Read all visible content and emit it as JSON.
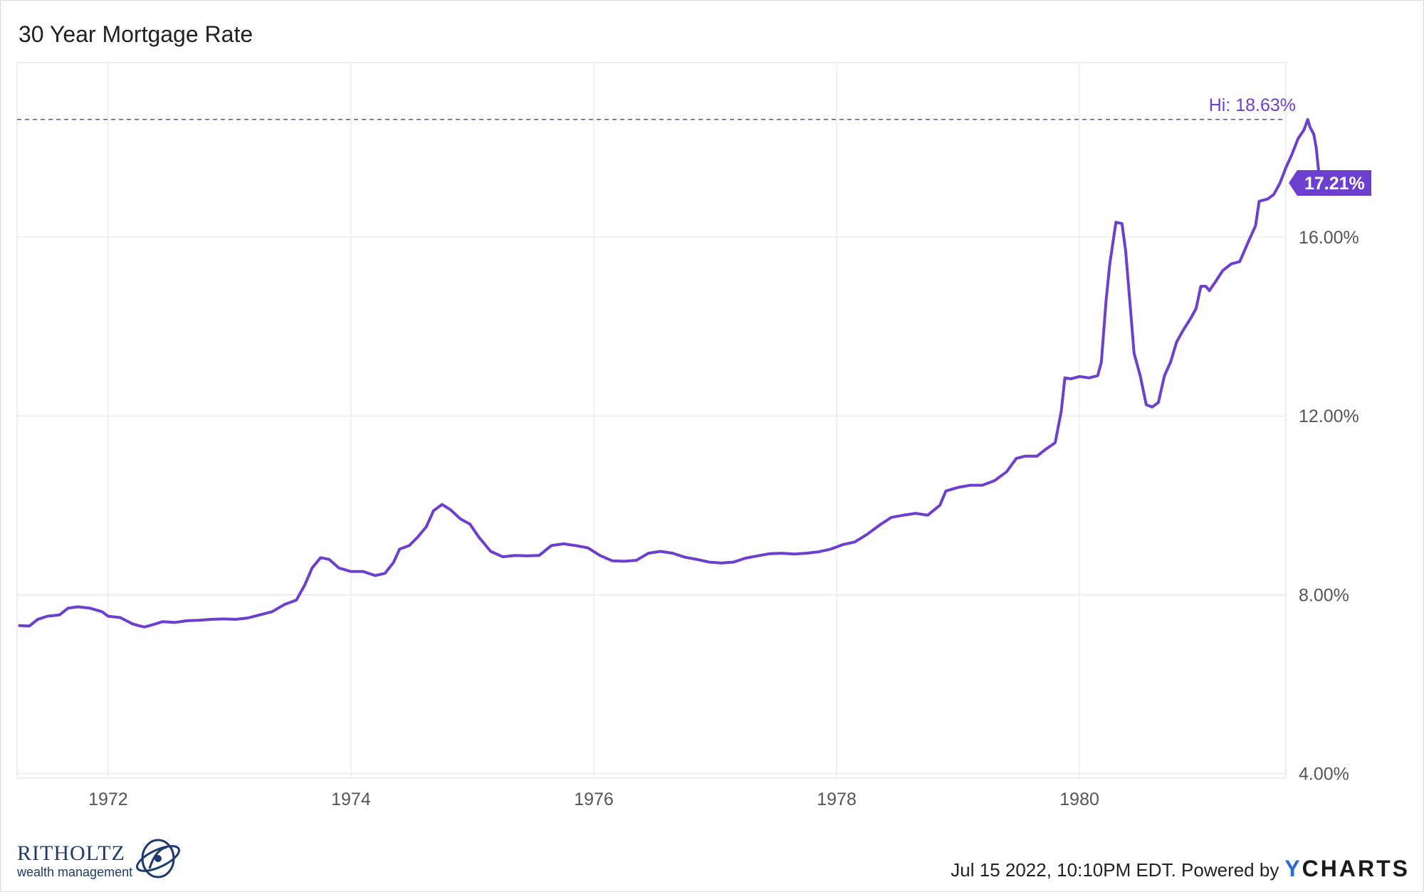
{
  "title": "30 Year Mortgage Rate",
  "footer": {
    "timestamp": "Jul 15 2022, 10:10PM EDT. Powered by",
    "logo": "YCHARTS"
  },
  "brand": {
    "name": "RITHOLTZ",
    "sub": "wealth management"
  },
  "colors": {
    "line": "#6c3fcf",
    "grid": "#e4e4e4",
    "axis_text": "#555555",
    "badge": "#6c3fcf"
  },
  "chart_data": {
    "type": "line",
    "title": "30 Year Mortgage Rate",
    "xlabel": "",
    "ylabel": "",
    "xlim": [
      1971.25,
      1981.7
    ],
    "ylim": [
      3.9,
      19.9
    ],
    "y_ticks": [
      4,
      8,
      12,
      16
    ],
    "y_tick_labels": [
      "4.00%",
      "8.00%",
      "12.00%",
      "16.00%"
    ],
    "x_ticks": [
      1972,
      1974,
      1976,
      1978,
      1980
    ],
    "x_tick_labels": [
      "1972",
      "1974",
      "1976",
      "1978",
      "1980"
    ],
    "grid": true,
    "hi_value": 18.63,
    "hi_label": "Hi: 18.63%",
    "last_value": 17.21,
    "last_label": "17.21%",
    "series": [
      {
        "name": "30 Year Mortgage Rate",
        "points": [
          [
            1971.27,
            7.31
          ],
          [
            1971.35,
            7.3
          ],
          [
            1971.42,
            7.45
          ],
          [
            1971.5,
            7.52
          ],
          [
            1971.6,
            7.55
          ],
          [
            1971.67,
            7.7
          ],
          [
            1971.75,
            7.73
          ],
          [
            1971.85,
            7.7
          ],
          [
            1971.95,
            7.62
          ],
          [
            1972.0,
            7.52
          ],
          [
            1972.1,
            7.49
          ],
          [
            1972.2,
            7.35
          ],
          [
            1972.25,
            7.31
          ],
          [
            1972.3,
            7.28
          ],
          [
            1972.38,
            7.34
          ],
          [
            1972.45,
            7.4
          ],
          [
            1972.55,
            7.38
          ],
          [
            1972.65,
            7.42
          ],
          [
            1972.75,
            7.43
          ],
          [
            1972.85,
            7.45
          ],
          [
            1972.95,
            7.46
          ],
          [
            1973.05,
            7.45
          ],
          [
            1973.15,
            7.48
          ],
          [
            1973.25,
            7.55
          ],
          [
            1973.35,
            7.62
          ],
          [
            1973.45,
            7.78
          ],
          [
            1973.55,
            7.88
          ],
          [
            1973.62,
            8.22
          ],
          [
            1973.68,
            8.6
          ],
          [
            1973.75,
            8.83
          ],
          [
            1973.82,
            8.79
          ],
          [
            1973.9,
            8.6
          ],
          [
            1974.0,
            8.52
          ],
          [
            1974.1,
            8.52
          ],
          [
            1974.2,
            8.43
          ],
          [
            1974.28,
            8.48
          ],
          [
            1974.35,
            8.72
          ],
          [
            1974.4,
            9.02
          ],
          [
            1974.48,
            9.1
          ],
          [
            1974.55,
            9.29
          ],
          [
            1974.62,
            9.52
          ],
          [
            1974.68,
            9.88
          ],
          [
            1974.75,
            10.02
          ],
          [
            1974.82,
            9.9
          ],
          [
            1974.9,
            9.7
          ],
          [
            1974.98,
            9.58
          ],
          [
            1975.05,
            9.3
          ],
          [
            1975.15,
            8.97
          ],
          [
            1975.25,
            8.85
          ],
          [
            1975.35,
            8.88
          ],
          [
            1975.45,
            8.87
          ],
          [
            1975.55,
            8.88
          ],
          [
            1975.65,
            9.1
          ],
          [
            1975.75,
            9.14
          ],
          [
            1975.85,
            9.1
          ],
          [
            1975.95,
            9.05
          ],
          [
            1976.05,
            8.88
          ],
          [
            1976.15,
            8.76
          ],
          [
            1976.25,
            8.75
          ],
          [
            1976.35,
            8.77
          ],
          [
            1976.45,
            8.93
          ],
          [
            1976.55,
            8.97
          ],
          [
            1976.65,
            8.93
          ],
          [
            1976.75,
            8.84
          ],
          [
            1976.85,
            8.79
          ],
          [
            1976.95,
            8.73
          ],
          [
            1977.05,
            8.71
          ],
          [
            1977.15,
            8.73
          ],
          [
            1977.25,
            8.82
          ],
          [
            1977.35,
            8.87
          ],
          [
            1977.45,
            8.92
          ],
          [
            1977.55,
            8.93
          ],
          [
            1977.65,
            8.91
          ],
          [
            1977.75,
            8.93
          ],
          [
            1977.85,
            8.96
          ],
          [
            1977.95,
            9.02
          ],
          [
            1978.05,
            9.12
          ],
          [
            1978.15,
            9.18
          ],
          [
            1978.25,
            9.35
          ],
          [
            1978.35,
            9.55
          ],
          [
            1978.45,
            9.73
          ],
          [
            1978.55,
            9.78
          ],
          [
            1978.65,
            9.82
          ],
          [
            1978.75,
            9.78
          ],
          [
            1978.85,
            10.0
          ],
          [
            1978.9,
            10.32
          ],
          [
            1979.0,
            10.4
          ],
          [
            1979.1,
            10.45
          ],
          [
            1979.2,
            10.45
          ],
          [
            1979.3,
            10.55
          ],
          [
            1979.4,
            10.75
          ],
          [
            1979.48,
            11.05
          ],
          [
            1979.55,
            11.1
          ],
          [
            1979.65,
            11.1
          ],
          [
            1979.72,
            11.25
          ],
          [
            1979.8,
            11.4
          ],
          [
            1979.85,
            12.1
          ],
          [
            1979.88,
            12.85
          ],
          [
            1979.93,
            12.83
          ],
          [
            1980.0,
            12.88
          ],
          [
            1980.08,
            12.85
          ],
          [
            1980.15,
            12.9
          ],
          [
            1980.18,
            13.2
          ],
          [
            1980.22,
            14.6
          ],
          [
            1980.25,
            15.4
          ],
          [
            1980.3,
            16.33
          ],
          [
            1980.35,
            16.3
          ],
          [
            1980.38,
            15.7
          ],
          [
            1980.42,
            14.4
          ],
          [
            1980.45,
            13.4
          ],
          [
            1980.5,
            12.9
          ],
          [
            1980.55,
            12.25
          ],
          [
            1980.6,
            12.2
          ],
          [
            1980.65,
            12.3
          ],
          [
            1980.7,
            12.9
          ],
          [
            1980.75,
            13.2
          ],
          [
            1980.8,
            13.65
          ],
          [
            1980.85,
            13.9
          ],
          [
            1980.92,
            14.2
          ],
          [
            1980.96,
            14.4
          ],
          [
            1981.0,
            14.9
          ],
          [
            1981.04,
            14.9
          ],
          [
            1981.07,
            14.8
          ],
          [
            1981.12,
            15.0
          ],
          [
            1981.18,
            15.25
          ],
          [
            1981.25,
            15.4
          ],
          [
            1981.32,
            15.45
          ],
          [
            1981.4,
            15.95
          ],
          [
            1981.45,
            16.25
          ],
          [
            1981.48,
            16.8
          ],
          [
            1981.55,
            16.85
          ],
          [
            1981.6,
            16.95
          ],
          [
            1981.65,
            17.2
          ],
          [
            1981.7,
            17.55
          ],
          [
            1981.75,
            17.85
          ],
          [
            1981.8,
            18.2
          ],
          [
            1981.85,
            18.4
          ],
          [
            1981.88,
            18.63
          ],
          [
            1981.9,
            18.45
          ],
          [
            1981.93,
            18.3
          ],
          [
            1981.95,
            18.0
          ],
          [
            1981.98,
            17.21
          ]
        ]
      }
    ]
  }
}
